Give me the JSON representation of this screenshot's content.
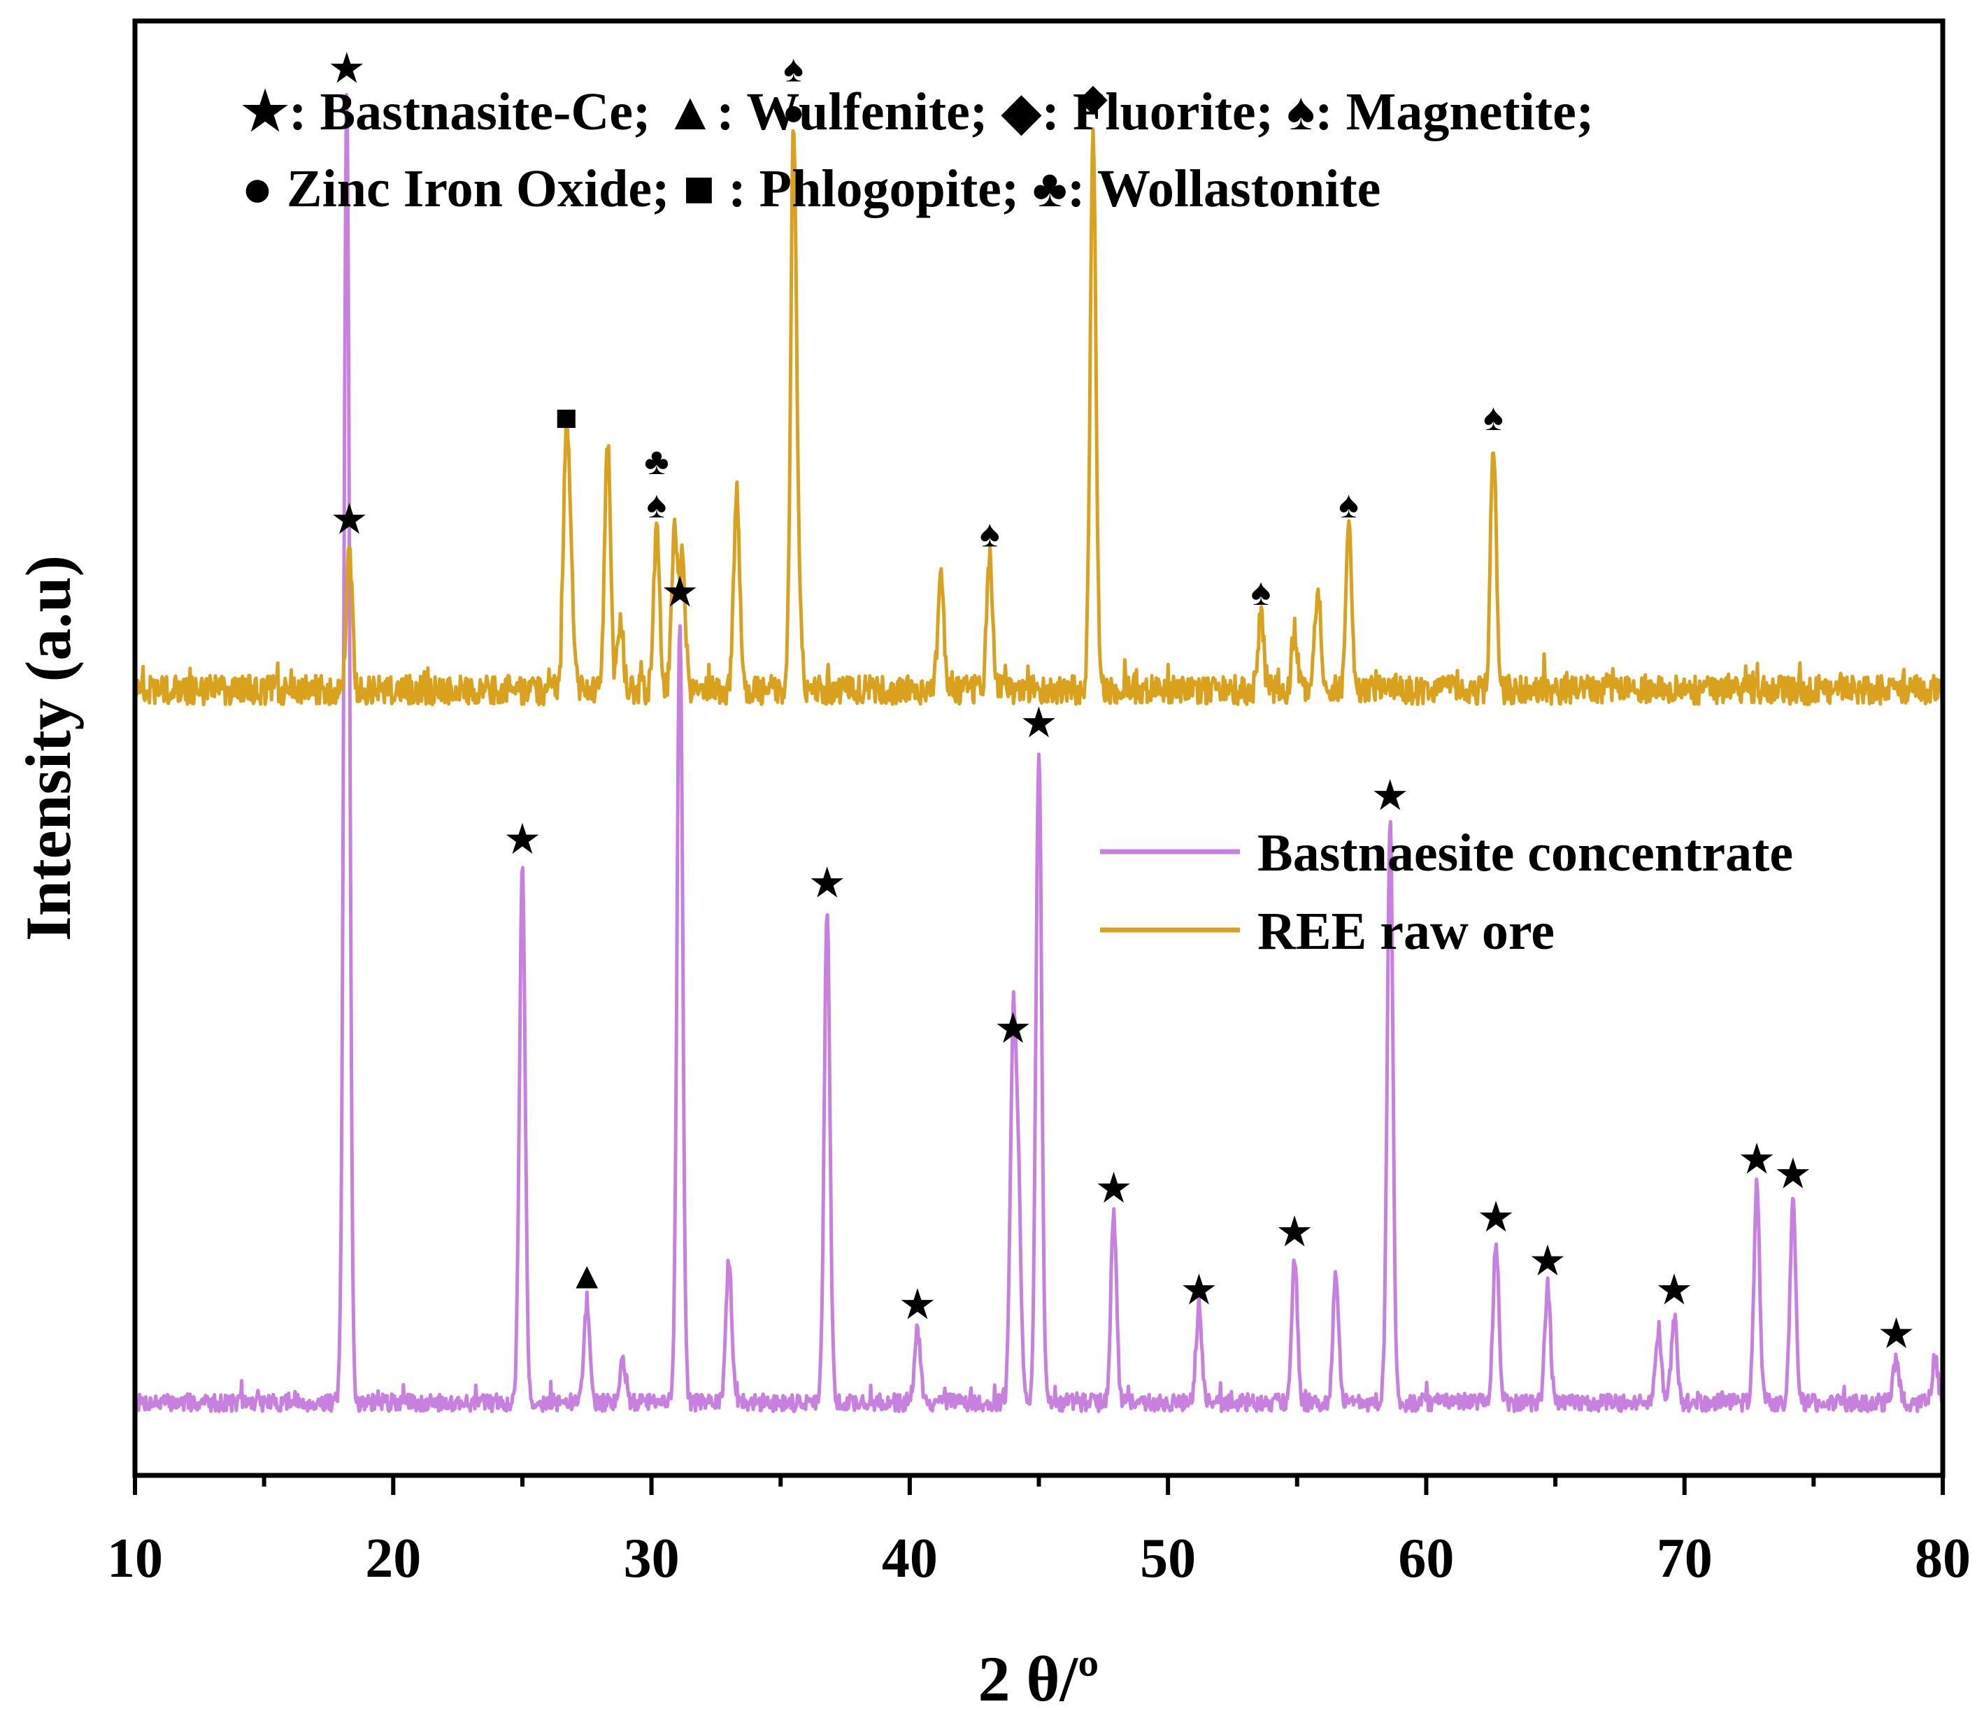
{
  "chart_data": {
    "type": "line",
    "title": "",
    "xlabel": "2 θ/º",
    "ylabel": "Intensity (a.u)",
    "xlim": [
      10,
      80
    ],
    "ylim": [
      0,
      1
    ],
    "x_ticks": [
      "10",
      "20",
      "30",
      "40",
      "50",
      "60",
      "70",
      "80"
    ],
    "y_ticks": [],
    "grid": false,
    "legend": {
      "placement": "center-right",
      "entries": [
        "Bastnaesite concentrate",
        "REE raw ore"
      ]
    },
    "phase_legend": {
      "placement": "top",
      "lines": [
        "★: Bastnasite-Ce; ▲:  Wulfenite; ◆: Fluorite;  ♠: Magnetite;",
        "● Zinc Iron Oxide; ■ : Phlogopite; ♣: Wollastonite"
      ]
    },
    "series": [
      {
        "name": "Bastnaesite concentrate",
        "color": "#c77fe0",
        "baseline": 0.05,
        "noise": 0.006,
        "peaks": [
          {
            "x": 18.2,
            "h": 0.9,
            "m": "★"
          },
          {
            "x": 25.0,
            "h": 0.37,
            "m": "★"
          },
          {
            "x": 27.5,
            "h": 0.07,
            "m": "▲"
          },
          {
            "x": 28.9,
            "h": 0.03
          },
          {
            "x": 31.1,
            "h": 0.54,
            "m": "★"
          },
          {
            "x": 33.0,
            "h": 0.1
          },
          {
            "x": 36.8,
            "h": 0.34,
            "m": "★"
          },
          {
            "x": 40.3,
            "h": 0.05,
            "m": "★"
          },
          {
            "x": 44.0,
            "h": 0.24,
            "m": "★"
          },
          {
            "x": 44.2,
            "h": 0.14
          },
          {
            "x": 45.0,
            "h": 0.45,
            "m": "★"
          },
          {
            "x": 47.9,
            "h": 0.13,
            "m": "★"
          },
          {
            "x": 51.2,
            "h": 0.06,
            "m": "★"
          },
          {
            "x": 54.9,
            "h": 0.1,
            "m": "★"
          },
          {
            "x": 56.5,
            "h": 0.09
          },
          {
            "x": 58.6,
            "h": 0.4,
            "m": "★"
          },
          {
            "x": 62.7,
            "h": 0.11,
            "m": "★"
          },
          {
            "x": 64.7,
            "h": 0.08,
            "m": "★"
          },
          {
            "x": 69.0,
            "h": 0.05
          },
          {
            "x": 69.6,
            "h": 0.06,
            "m": "★"
          },
          {
            "x": 72.8,
            "h": 0.15,
            "m": "★"
          },
          {
            "x": 74.2,
            "h": 0.14,
            "m": "★"
          },
          {
            "x": 78.2,
            "h": 0.03,
            "m": "★"
          },
          {
            "x": 79.7,
            "h": 0.03
          }
        ]
      },
      {
        "name": "REE raw ore",
        "color": "#daa11c",
        "baseline": 0.54,
        "noise": 0.01,
        "peaks": [
          {
            "x": 18.3,
            "h": 0.1,
            "m": "★"
          },
          {
            "x": 26.7,
            "h": 0.17,
            "m": "■"
          },
          {
            "x": 26.9,
            "h": 0.06
          },
          {
            "x": 28.3,
            "h": 0.17
          },
          {
            "x": 28.8,
            "h": 0.05
          },
          {
            "x": 30.2,
            "h": 0.11,
            "m": "♠♣"
          },
          {
            "x": 30.9,
            "h": 0.11
          },
          {
            "x": 31.2,
            "h": 0.09
          },
          {
            "x": 33.3,
            "h": 0.14
          },
          {
            "x": 35.5,
            "h": 0.38,
            "m": "●♠"
          },
          {
            "x": 35.7,
            "h": 0.05
          },
          {
            "x": 41.2,
            "h": 0.08
          },
          {
            "x": 43.1,
            "h": 0.09,
            "m": "♠"
          },
          {
            "x": 47.1,
            "h": 0.39,
            "m": "◆"
          },
          {
            "x": 53.6,
            "h": 0.05,
            "m": "♠"
          },
          {
            "x": 54.9,
            "h": 0.04
          },
          {
            "x": 55.8,
            "h": 0.07
          },
          {
            "x": 57.0,
            "h": 0.11,
            "m": "♠"
          },
          {
            "x": 62.6,
            "h": 0.17,
            "m": "♠"
          }
        ]
      }
    ]
  }
}
